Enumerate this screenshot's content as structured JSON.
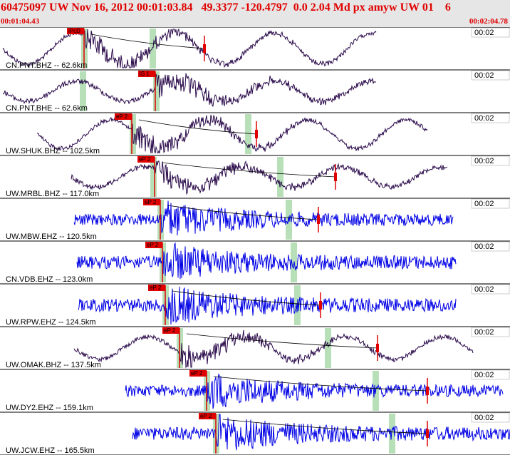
{
  "header": {
    "title": "60475097 UW Nov 16, 2012 00:01:03.84   49.3377 -120.4797  0.0 2.04 Md px amyw UW 01    6",
    "time_start": "00:01:04.43",
    "time_end": "00:02:04.78"
  },
  "colors": {
    "broadband": "#2a0a4a",
    "short_period": "#0000e6",
    "pick": "#e00000",
    "window": "#b8e0b8",
    "header_bg": "#e6e6e6"
  },
  "chart_data": {
    "type": "line",
    "title": "60475097 UW Nov 16, 2012 00:01:03.84",
    "x_range": [
      "00:01:04.43",
      "00:02:04.78"
    ],
    "traces": [
      {
        "label": "CN.PNT.BHZ -- 62.6km",
        "pick": "iPcD",
        "scale": "00:02",
        "color": "dark",
        "type": "broadband"
      },
      {
        "label": "CN.PNT.BHE -- 62.6km",
        "pick": "iS 1",
        "scale": "00:02",
        "color": "dark",
        "type": "broadband"
      },
      {
        "label": "UW.SHUK.BHZ -- 102.5km",
        "pick": "eP 2",
        "scale": "00:02",
        "color": "dark",
        "type": "broadband"
      },
      {
        "label": "UW.MRBL.BHZ -- 117.0km",
        "pick": "eP 2",
        "scale": "00:02",
        "color": "dark",
        "type": "broadband"
      },
      {
        "label": "UW.MBW.EHZ -- 120.5km",
        "pick": "eP 2",
        "scale": "00:02",
        "color": "blue",
        "type": "short"
      },
      {
        "label": "CN.VDB.EHZ -- 123.0km",
        "pick": "eP 2",
        "scale": "00:02",
        "color": "blue",
        "type": "short"
      },
      {
        "label": "UW.RPW.EHZ -- 124.5km",
        "pick": "eP 2",
        "scale": "00:02",
        "color": "blue",
        "type": "short"
      },
      {
        "label": "UW.OMAK.BHZ -- 137.5km",
        "pick": "eP 2",
        "scale": "00:02",
        "color": "dark",
        "type": "broadband"
      },
      {
        "label": "UW.DY2.EHZ -- 159.1km",
        "pick": "eP 2",
        "scale": "00:02",
        "color": "blue",
        "type": "short"
      },
      {
        "label": "UW.JCW.EHZ -- 165.5km",
        "pick": "eP 2",
        "scale": "00:02",
        "color": "blue",
        "type": "short"
      }
    ]
  }
}
